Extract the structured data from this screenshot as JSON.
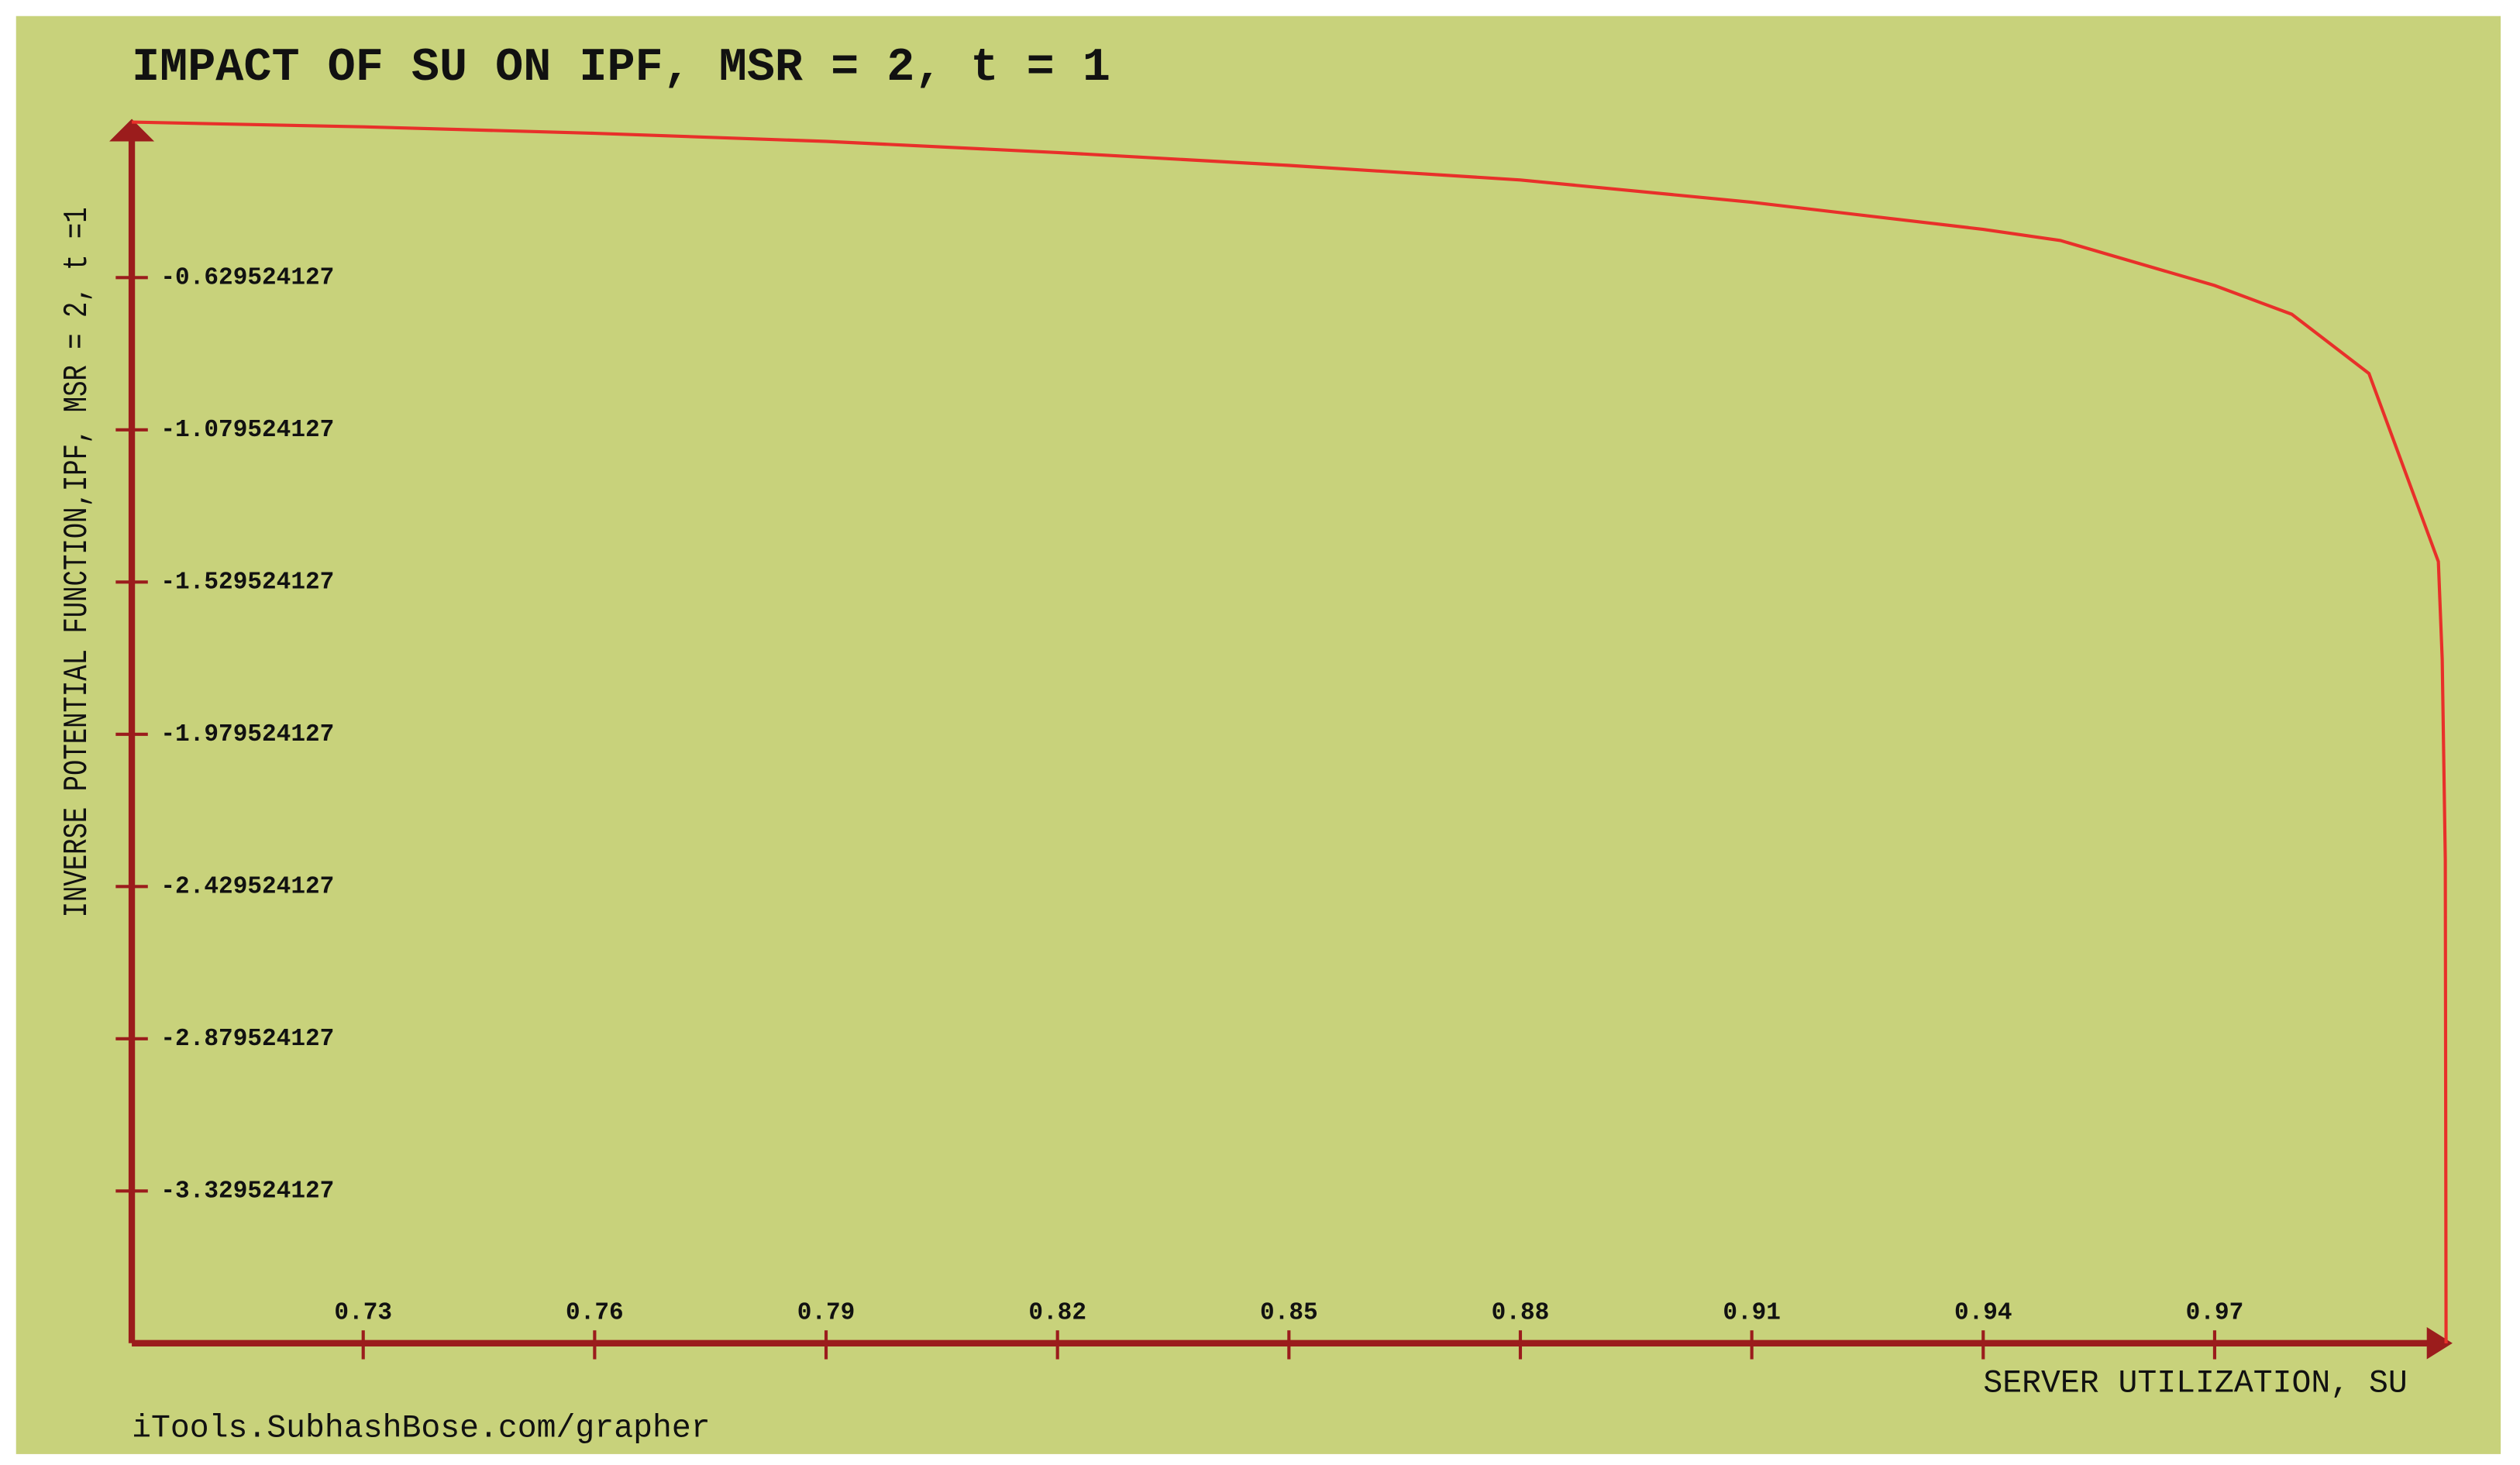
{
  "chart_data": {
    "type": "line",
    "title": "IMPACT OF SU ON IPF, MSR = 2, t = 1",
    "x_label": "SERVER UTILIZATION, SU",
    "y_label": "INVERSE POTENTIAL FUNCTION,IPF, MSR = 2, t =1",
    "footer": "iTools.SubhashBose.com/grapher",
    "x": [
      0.7,
      0.73,
      0.76,
      0.79,
      0.82,
      0.85,
      0.88,
      0.91,
      0.94,
      0.95,
      0.97,
      0.98,
      0.99,
      0.999,
      0.9995,
      0.9999,
      1.0
    ],
    "series": [
      {
        "color": "#e8302a",
        "values": [
          -0.17,
          -0.184,
          -0.203,
          -0.227,
          -0.26,
          -0.298,
          -0.341,
          -0.407,
          -0.487,
          -0.52,
          -0.653,
          -0.738,
          -0.913,
          -1.469,
          -1.758,
          -2.35,
          -3.78
        ]
      }
    ],
    "xlim": [
      0.7,
      1.0
    ],
    "ylim": [
      -3.779524127,
      -0.179524127
    ],
    "xticks": [
      0.73,
      0.76,
      0.79,
      0.82,
      0.85,
      0.88,
      0.91,
      0.94,
      0.97
    ],
    "yticks": [
      -0.629524127,
      -1.079524127,
      -1.529524127,
      -1.979524127,
      -2.429524127,
      -2.879524127,
      -3.329524127
    ],
    "axis_color": "#9b1c1c",
    "background": "#c8d27b"
  }
}
